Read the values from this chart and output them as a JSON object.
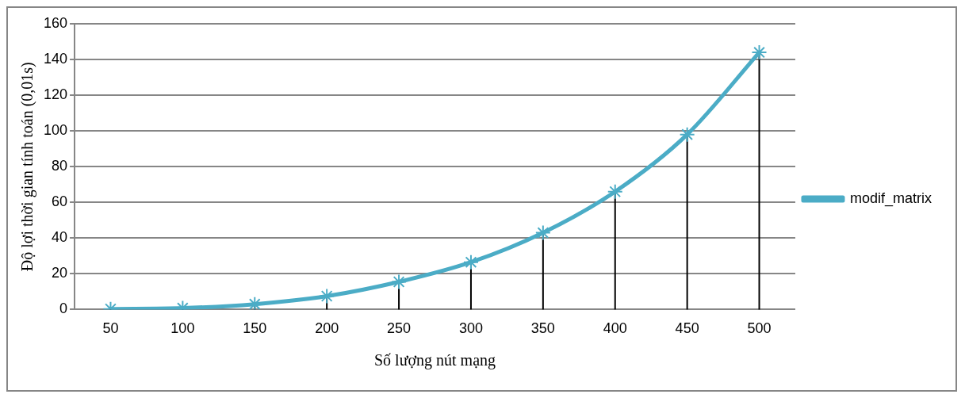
{
  "chart_data": {
    "type": "line",
    "xlabel": "Số lượng nút mạng",
    "ylabel": "Độ lợi thời gian tính toán (0,01s)",
    "categories": [
      "50",
      "100",
      "150",
      "200",
      "250",
      "300",
      "350",
      "400",
      "450",
      "500"
    ],
    "series": [
      {
        "name": "modif_matrix",
        "color": "#4bacc6",
        "values": [
          0.3,
          0.8,
          3,
          7.5,
          15.5,
          26.5,
          43,
          66,
          98,
          144
        ],
        "errors": [
          [
            0,
            0.3
          ],
          [
            0,
            0.8
          ],
          [
            0,
            3
          ],
          [
            0,
            7.5
          ],
          [
            0,
            15.5
          ],
          [
            0,
            26.5
          ],
          [
            0,
            43
          ],
          [
            0,
            66
          ],
          [
            0,
            98
          ],
          [
            0,
            144
          ]
        ]
      }
    ],
    "ylim": [
      0,
      160
    ],
    "yticks": [
      0,
      20,
      40,
      60,
      80,
      100,
      120,
      140,
      160
    ],
    "grid": "y",
    "legend": "right",
    "marker": "cross",
    "line_style": "solid"
  }
}
